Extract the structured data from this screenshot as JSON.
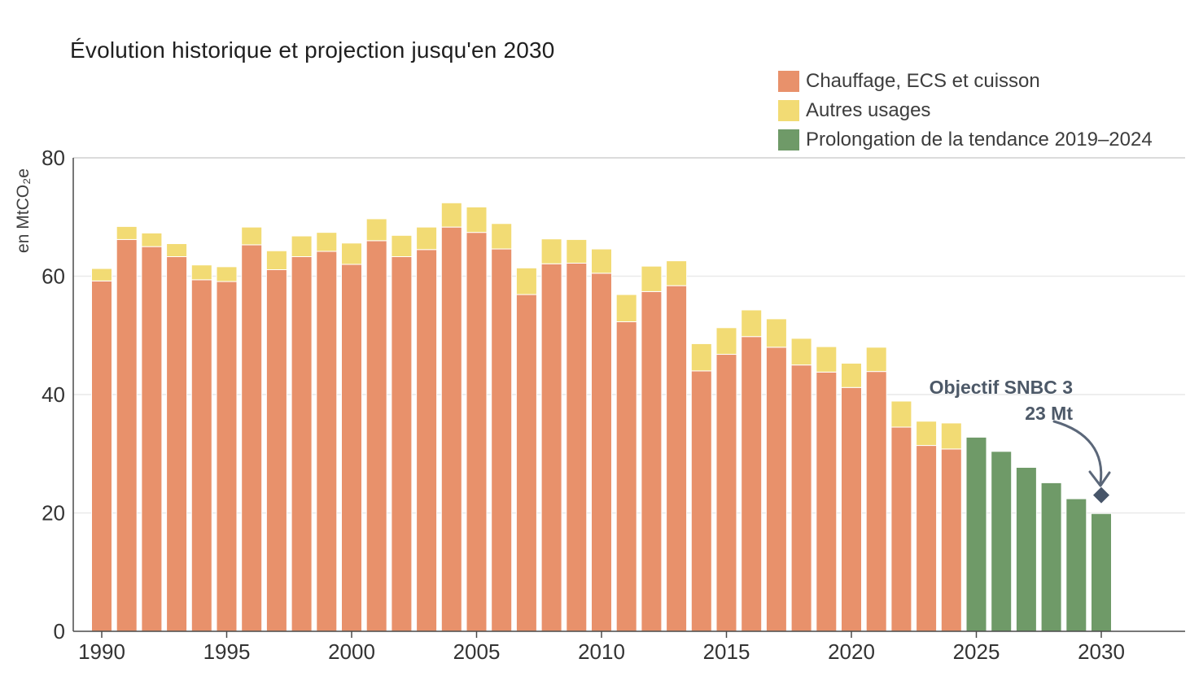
{
  "chart": {
    "title": "Évolution historique et projection jusqu'en 2030"
  },
  "legend": {
    "items": [
      {
        "label": "Chauffage, ECS et cuisson",
        "color": "#E8916B"
      },
      {
        "label": "Autres usages",
        "color": "#F2DB74"
      },
      {
        "label": "Prolongation de la tendance 2019–2024",
        "color": "#6F9A68"
      }
    ]
  },
  "annotation": {
    "line1": "Objectif SNBC 3",
    "line2": "23 Mt",
    "color": "#4D5968"
  },
  "chart_data": {
    "type": "bar",
    "stacked": true,
    "title": "Évolution historique et projection jusqu'en 2030",
    "ylabel": "en MtCO₂e",
    "xlabel": "",
    "ylim": [
      0,
      80
    ],
    "grid": true,
    "legend_position": "top-right",
    "yticks": [
      0,
      20,
      40,
      60,
      80
    ],
    "xticks": [
      1990,
      1995,
      2000,
      2005,
      2010,
      2015,
      2020,
      2025,
      2030
    ],
    "x": [
      1990,
      1991,
      1992,
      1993,
      1994,
      1995,
      1996,
      1997,
      1998,
      1999,
      2000,
      2001,
      2002,
      2003,
      2004,
      2005,
      2006,
      2007,
      2008,
      2009,
      2010,
      2011,
      2012,
      2013,
      2014,
      2015,
      2016,
      2017,
      2018,
      2019,
      2020,
      2021,
      2022,
      2023,
      2024,
      2025,
      2026,
      2027,
      2028,
      2029,
      2030
    ],
    "series": [
      {
        "key": "chauffage",
        "name": "Chauffage, ECS et cuisson",
        "color": "#E8916B",
        "values": [
          59.2,
          66.2,
          65.0,
          63.3,
          59.4,
          59.1,
          65.3,
          61.1,
          63.3,
          64.2,
          62.0,
          66.0,
          63.3,
          64.5,
          68.3,
          67.4,
          64.6,
          56.9,
          62.1,
          62.2,
          60.5,
          52.3,
          57.4,
          58.4,
          44.0,
          46.8,
          49.8,
          48.0,
          45.0,
          43.8,
          41.2,
          43.9,
          34.5,
          31.4,
          30.8,
          null,
          null,
          null,
          null,
          null,
          null
        ]
      },
      {
        "key": "autres",
        "name": "Autres usages",
        "color": "#F2DB74",
        "values": [
          2.1,
          2.2,
          2.3,
          2.2,
          2.5,
          2.5,
          3.0,
          3.2,
          3.5,
          3.2,
          3.6,
          3.7,
          3.6,
          3.8,
          4.1,
          4.3,
          4.3,
          4.5,
          4.2,
          4.0,
          4.1,
          4.6,
          4.3,
          4.2,
          4.6,
          4.5,
          4.5,
          4.8,
          4.5,
          4.3,
          4.1,
          4.1,
          4.4,
          4.1,
          4.4,
          null,
          null,
          null,
          null,
          null,
          null
        ]
      },
      {
        "key": "prolongation",
        "name": "Prolongation de la tendance 2019–2024",
        "color": "#6F9A68",
        "values": [
          null,
          null,
          null,
          null,
          null,
          null,
          null,
          null,
          null,
          null,
          null,
          null,
          null,
          null,
          null,
          null,
          null,
          null,
          null,
          null,
          null,
          null,
          null,
          null,
          null,
          null,
          null,
          null,
          null,
          null,
          null,
          null,
          null,
          null,
          null,
          32.8,
          30.4,
          27.7,
          25.1,
          22.4,
          19.9
        ]
      }
    ],
    "marker": {
      "x": 2030,
      "y": 23,
      "label": "Objectif SNBC 3",
      "value_label": "23 Mt",
      "color": "#475569"
    }
  }
}
